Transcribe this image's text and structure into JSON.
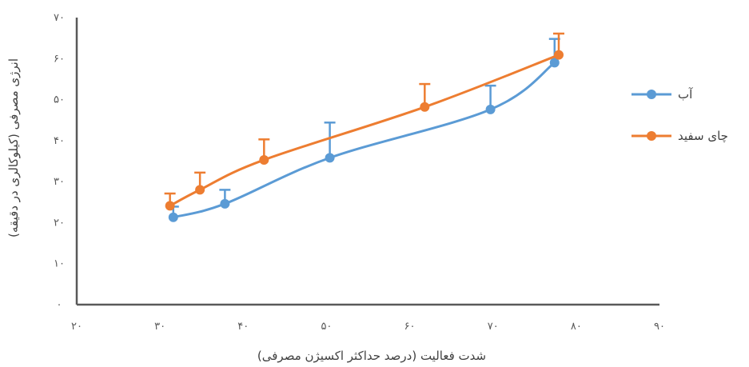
{
  "chart_data": {
    "type": "line",
    "xlabel": "شدت فعالیت (درصد حداکثر اکسیژن مصرفی)",
    "ylabel": "انرژی مصرفی (کیلوکالری در دقیقه)",
    "xlim": [
      20,
      90
    ],
    "ylim": [
      0,
      70
    ],
    "x_ticks": [
      20,
      30,
      40,
      50,
      60,
      70,
      80,
      90
    ],
    "y_ticks": [
      0,
      10,
      20,
      30,
      40,
      50,
      60,
      70
    ],
    "x_tick_labels": [
      "۲۰",
      "۳۰",
      "۴۰",
      "۵۰",
      "۶۰",
      "۷۰",
      "۸۰",
      "۹۰"
    ],
    "y_tick_labels": [
      "۰",
      "۱۰",
      "۲۰",
      "۳۰",
      "۴۰",
      "۵۰",
      "۶۰",
      "۷۰"
    ],
    "grid": false,
    "legend_position": "right",
    "series": [
      {
        "name": "آب",
        "color": "#5B9BD5",
        "x": [
          31.6,
          37.8,
          50.4,
          69.7,
          77.4
        ],
        "y": [
          21.3,
          24.6,
          35.8,
          47.6,
          59.0
        ],
        "error": [
          2.6,
          3.4,
          8.6,
          5.8,
          5.8
        ]
      },
      {
        "name": "چای سفید",
        "color": "#ED7D31",
        "x": [
          31.2,
          34.8,
          42.5,
          61.8,
          77.9
        ],
        "y": [
          24.1,
          28.0,
          35.3,
          48.2,
          60.9
        ],
        "error": [
          3.0,
          4.2,
          5.0,
          5.6,
          5.2
        ]
      }
    ]
  }
}
